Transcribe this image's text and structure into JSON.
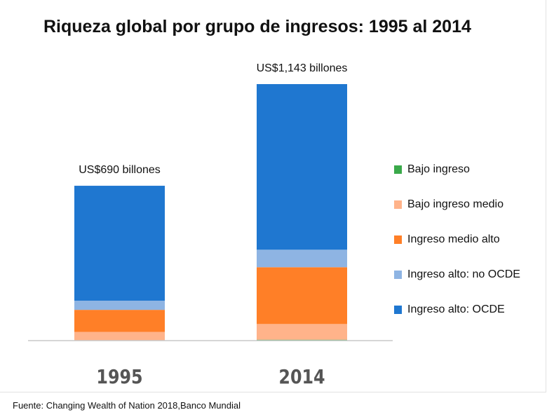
{
  "title": "Riqueza global por grupo de ingresos: 1995 al 2014",
  "source": "Fuente: Changing Wealth of Nation 2018,Banco Mundial",
  "chart_data": {
    "type": "bar",
    "stacked": true,
    "categories": [
      "1995",
      "2014"
    ],
    "totals": [
      690,
      1143
    ],
    "total_labels": [
      "US$690 billones",
      "US$1,143 billones"
    ],
    "series": [
      {
        "name": "Bajo ingreso",
        "color": "#3aa94a",
        "values": [
          1,
          4
        ]
      },
      {
        "name": "Bajo ingreso medio",
        "color": "#ffb38a",
        "values": [
          38,
          70
        ]
      },
      {
        "name": "Ingreso medio alto",
        "color": "#ff7f27",
        "values": [
          98,
          253
        ]
      },
      {
        "name": "Ingreso alto: no OCDE",
        "color": "#8eb4e3",
        "values": [
          41,
          78
        ]
      },
      {
        "name": "Ingreso alto: OCDE",
        "color": "#1f77d0",
        "values": [
          512,
          738
        ]
      }
    ],
    "ylim": [
      0,
      1143
    ],
    "legend_position": "right"
  }
}
